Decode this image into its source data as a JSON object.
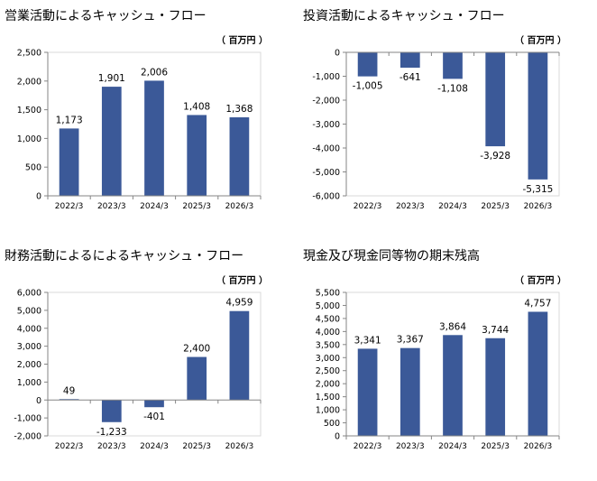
{
  "charts": [
    {
      "title": "営業活動によるキャッシュ・フロー",
      "unit": "（ 百万円 ）",
      "chart_data": {
        "type": "bar",
        "categories": [
          "2022/3",
          "2023/3",
          "2024/3",
          "2025/3",
          "2026/3"
        ],
        "values": [
          1173,
          1901,
          2006,
          1408,
          1368
        ],
        "data_labels": [
          "1,173",
          "1,901",
          "2,006",
          "1,408",
          "1,368"
        ],
        "ylim": [
          0,
          2500
        ],
        "yticks": [
          0,
          500,
          1000,
          1500,
          2000,
          2500
        ],
        "ytick_labels": [
          "0",
          "500",
          "1,000",
          "1,500",
          "2,000",
          "2,500"
        ],
        "grid": false,
        "bar_color": "#3b5998"
      }
    },
    {
      "title": "投資活動によるキャッシュ・フロー",
      "unit": "（ 百万円 ）",
      "chart_data": {
        "type": "bar",
        "categories": [
          "2022/3",
          "2023/3",
          "2024/3",
          "2025/3",
          "2026/3"
        ],
        "values": [
          -1005,
          -641,
          -1108,
          -3928,
          -5315
        ],
        "data_labels": [
          "-1,005",
          "-641",
          "-1,108",
          "-3,928",
          "-5,315"
        ],
        "ylim": [
          -6000,
          0
        ],
        "yticks": [
          -6000,
          -5000,
          -4000,
          -3000,
          -2000,
          -1000,
          0
        ],
        "ytick_labels": [
          "-6,000",
          "-5,000",
          "-4,000",
          "-3,000",
          "-2,000",
          "-1,000",
          "0"
        ],
        "grid": false,
        "bar_color": "#3b5998"
      }
    },
    {
      "title": "財務活動によるによるキャッシュ・フロー",
      "unit": "（ 百万円 ）",
      "chart_data": {
        "type": "bar",
        "categories": [
          "2022/3",
          "2023/3",
          "2024/3",
          "2025/3",
          "2026/3"
        ],
        "values": [
          49,
          -1233,
          -401,
          2400,
          4959
        ],
        "data_labels": [
          "49",
          "-1,233",
          "-401",
          "2,400",
          "4,959"
        ],
        "ylim": [
          -2000,
          6000
        ],
        "yticks": [
          -2000,
          -1000,
          0,
          1000,
          2000,
          3000,
          4000,
          5000,
          6000
        ],
        "ytick_labels": [
          "-2,000",
          "-1,000",
          "0",
          "1,000",
          "2,000",
          "3,000",
          "4,000",
          "5,000",
          "6,000"
        ],
        "grid": false,
        "bar_color": "#3b5998"
      }
    },
    {
      "title": "現金及び現金同等物の期末残高",
      "unit": "（ 百万円 ）",
      "chart_data": {
        "type": "bar",
        "categories": [
          "2022/3",
          "2023/3",
          "2024/3",
          "2025/3",
          "2026/3"
        ],
        "values": [
          3341,
          3367,
          3864,
          3744,
          4757
        ],
        "data_labels": [
          "3,341",
          "3,367",
          "3,864",
          "3,744",
          "4,757"
        ],
        "ylim": [
          0,
          5500
        ],
        "yticks": [
          0,
          500,
          1000,
          1500,
          2000,
          2500,
          3000,
          3500,
          4000,
          4500,
          5000,
          5500
        ],
        "ytick_labels": [
          "0",
          "500",
          "1,000",
          "1,500",
          "2,000",
          "2,500",
          "3,000",
          "3,500",
          "4,000",
          "4,500",
          "5,000",
          "5,500"
        ],
        "grid": false,
        "bar_color": "#3b5998"
      }
    }
  ]
}
